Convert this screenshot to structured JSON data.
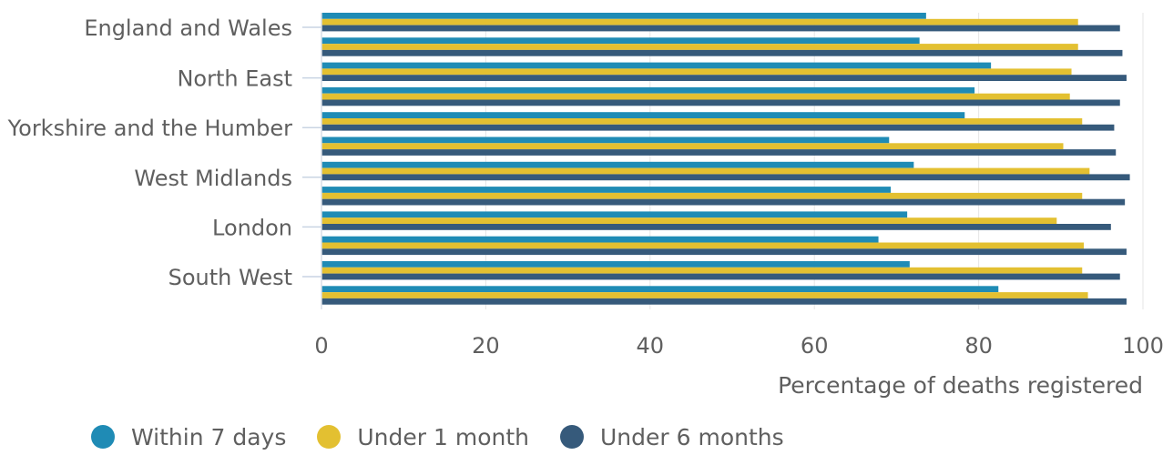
{
  "chart_data": {
    "type": "bar",
    "orientation": "horizontal",
    "categories": [
      "England and Wales",
      "",
      "North East",
      "",
      "Yorkshire and the Humber",
      "",
      "West Midlands",
      "",
      "London",
      "",
      "South West",
      ""
    ],
    "series": [
      {
        "name": "Within 7 days",
        "color": "#1f8bb5",
        "values": [
          73.6,
          72.8,
          81.5,
          79.5,
          78.3,
          69.1,
          72.1,
          69.3,
          71.3,
          67.8,
          71.6,
          82.4
        ]
      },
      {
        "name": "Under 1 month",
        "color": "#e3c031",
        "values": [
          92.1,
          92.1,
          91.3,
          91.1,
          92.6,
          90.3,
          93.5,
          92.6,
          89.5,
          92.8,
          92.6,
          93.3
        ]
      },
      {
        "name": "Under 6 months",
        "color": "#365a7b",
        "values": [
          97.2,
          97.5,
          98.0,
          97.2,
          96.5,
          96.7,
          98.4,
          97.8,
          96.1,
          98.0,
          97.2,
          98.0
        ]
      }
    ],
    "xlabel": "Percentage of deaths registered",
    "xlim": [
      0,
      100
    ],
    "xticks": [
      "0",
      "20",
      "40",
      "60",
      "80",
      "100"
    ],
    "grid": true,
    "legend_position": "bottom"
  }
}
